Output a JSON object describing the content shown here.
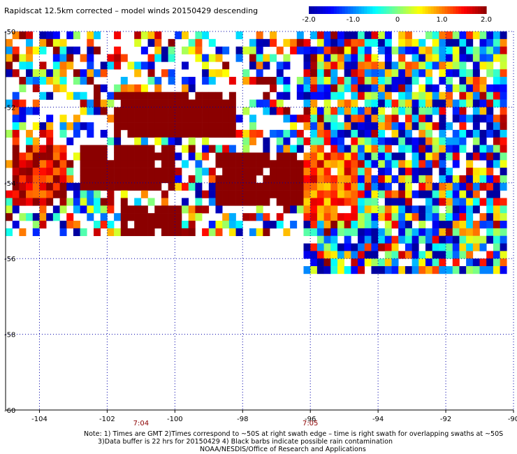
{
  "chart_data": {
    "type": "heatmap",
    "title": "Rapidscat 12.5km corrected – model winds 20150429 descending",
    "xlabel": "",
    "ylabel": "",
    "xlim": [
      -105,
      -90
    ],
    "ylim": [
      -60,
      -50
    ],
    "x_ticks": [
      -104,
      -102,
      -100,
      -98,
      -96,
      -94,
      -92,
      -90
    ],
    "y_ticks": [
      -50,
      -52,
      -54,
      -56,
      -58,
      -60
    ],
    "x_tick_labels": [
      "-104",
      "-102",
      "-100",
      "-98",
      "-96",
      "-94",
      "-92",
      "-90"
    ],
    "y_tick_labels": [
      "-50",
      "-52",
      "-54",
      "-56",
      "-58",
      "-60"
    ],
    "grid": "dotted",
    "colorbar": {
      "range": [
        -2.0,
        2.0
      ],
      "tick_values": [
        -2.0,
        -1.0,
        0,
        1.0,
        2.0
      ],
      "tick_labels": [
        "-2.0",
        "-1.0",
        "0",
        "1.0",
        "2.0"
      ],
      "placement": "top-right",
      "colors": [
        "#0000a0",
        "#0000ff",
        "#0080ff",
        "#00ffff",
        "#80ff80",
        "#ffff00",
        "#ff8000",
        "#ff0000",
        "#8b0000"
      ]
    },
    "time_annotations": [
      {
        "x": -101.0,
        "label": "7:04"
      },
      {
        "x": -96.0,
        "label": "7:05"
      }
    ],
    "swath_regions": [
      {
        "lon": [
          -105,
          -96.2
        ],
        "lat": [
          -55.4,
          -50.1
        ],
        "density": 0.55
      },
      {
        "lon": [
          -96.2,
          -90.2
        ],
        "lat": [
          -56.5,
          -50.1
        ],
        "density": 0.9
      }
    ],
    "high_value_patches": [
      {
        "lon": [
          -101.8,
          -98.2
        ],
        "lat": [
          -52.8,
          -51.6
        ],
        "value": 2.0
      },
      {
        "lon": [
          -102.8,
          -100.0
        ],
        "lat": [
          -54.2,
          -53.0
        ],
        "value": 2.0
      },
      {
        "lon": [
          -101.6,
          -99.8
        ],
        "lat": [
          -55.5,
          -54.6
        ],
        "value": 2.0
      },
      {
        "lon": [
          -98.8,
          -96.2
        ],
        "lat": [
          -54.6,
          -53.2
        ],
        "value": 2.0
      },
      {
        "lon": [
          -104.8,
          -103.2
        ],
        "lat": [
          -54.6,
          -53.0
        ],
        "value": 1.6
      },
      {
        "lon": [
          -96.2,
          -94.6
        ],
        "lat": [
          -55.0,
          -53.2
        ],
        "value": 1.2
      }
    ]
  },
  "notes": {
    "line1": "Note: 1) Times are GMT 2)Times correspond to ~50S at right swath edge – time is right swath for overlapping swaths at ~50S",
    "line2": "3)Data buffer is 22 hrs for 20150429 4) Black barbs indicate possible rain contamination",
    "line3": "NOAA/NESDIS/Office of Research and Applications"
  }
}
